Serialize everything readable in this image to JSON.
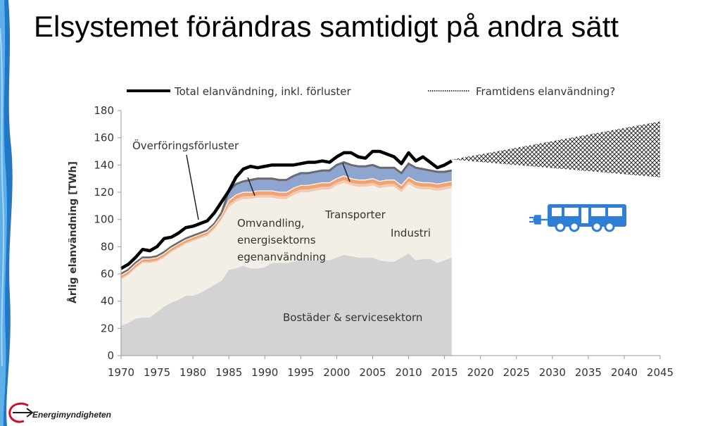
{
  "slide": {
    "title": "Elsystemet förändras samtidigt på andra sätt",
    "logo_text": "Energimyndigheten"
  },
  "chart_data": {
    "type": "area",
    "ylabel": "Årlig elanvändning [TWh]",
    "xlabel": "",
    "ylim": [
      0,
      180
    ],
    "xlim": [
      1970,
      2045
    ],
    "y_ticks": [
      0,
      20,
      40,
      60,
      80,
      100,
      120,
      140,
      160,
      180
    ],
    "x_ticks": [
      1970,
      1975,
      1980,
      1985,
      1990,
      1995,
      2000,
      2005,
      2010,
      2015,
      2020,
      2025,
      2030,
      2035,
      2040,
      2045
    ],
    "grid": false,
    "legend": {
      "placement": "top",
      "entries": [
        {
          "name": "Total elanvändning, inkl. förluster",
          "style": "line",
          "color": "#000000"
        },
        {
          "name": "Framtidens elanvändning?",
          "style": "dotted",
          "color": "#555555"
        }
      ]
    },
    "annotations": [
      {
        "text": "Överföringsförluster"
      },
      {
        "text": "Omvandling,"
      },
      {
        "text": "energisektorns"
      },
      {
        "text": "egenanvändning"
      },
      {
        "text": "Transporter"
      },
      {
        "text": "Industri"
      },
      {
        "text": "Bostäder & servicesektorn"
      }
    ],
    "x": [
      1970,
      1971,
      1972,
      1973,
      1974,
      1975,
      1976,
      1977,
      1978,
      1979,
      1980,
      1981,
      1982,
      1983,
      1984,
      1985,
      1986,
      1987,
      1988,
      1989,
      1990,
      1991,
      1992,
      1993,
      1994,
      1995,
      1996,
      1997,
      1998,
      1999,
      2000,
      2001,
      2002,
      2003,
      2004,
      2005,
      2006,
      2007,
      2008,
      2009,
      2010,
      2011,
      2012,
      2013,
      2014,
      2015,
      2016
    ],
    "series": [
      {
        "name": "Bostäder & servicesektorn",
        "color": "#d3d3d3",
        "values": [
          22,
          24,
          27,
          28,
          28,
          32,
          36,
          39,
          41,
          44,
          44,
          46,
          49,
          52,
          55,
          63,
          64,
          66,
          64,
          64,
          65,
          68,
          68,
          68,
          69,
          70,
          70,
          70,
          70,
          70,
          72,
          74,
          73,
          72,
          72,
          72,
          70,
          69,
          69,
          72,
          75,
          70,
          71,
          71,
          68,
          70,
          72
        ]
      },
      {
        "name": "Industri",
        "color": "#f3efe6",
        "values": [
          34,
          35,
          37,
          40,
          40,
          37,
          36,
          37,
          38,
          38,
          40,
          40,
          39,
          41,
          45,
          46,
          49,
          49,
          51,
          52,
          51,
          48,
          47,
          47,
          49,
          50,
          50,
          51,
          52,
          52,
          53,
          53,
          52,
          52,
          52,
          53,
          53,
          55,
          55,
          48,
          51,
          53,
          51,
          51,
          53,
          52,
          51
        ]
      },
      {
        "name": "Transporter",
        "color": "#f4c9b0",
        "values": [
          1,
          1,
          1,
          1,
          1,
          1,
          1,
          1,
          1,
          1,
          1,
          1,
          1,
          1,
          1,
          2,
          2,
          2,
          2,
          2,
          2,
          2,
          2,
          2,
          2,
          2,
          2,
          2,
          2,
          2,
          2,
          2,
          2,
          2,
          2,
          2,
          2,
          2,
          2,
          2,
          2,
          2,
          2,
          2,
          2,
          2,
          2
        ]
      },
      {
        "name": "Omvandling, energisektorns egenanvändning",
        "color": "#f0a272",
        "values": [
          2,
          2,
          2,
          2,
          2,
          2,
          2,
          2,
          2,
          2,
          2,
          2,
          2,
          2,
          2,
          3,
          3,
          3,
          3,
          3,
          3,
          3,
          3,
          3,
          3,
          3,
          3,
          3,
          3,
          3,
          3,
          3,
          3,
          3,
          3,
          3,
          3,
          3,
          3,
          3,
          3,
          3,
          3,
          3,
          3,
          3,
          3
        ]
      },
      {
        "name": "Överföringsförluster",
        "color": "#8ea6cf",
        "values": [
          1,
          1,
          1,
          1,
          1,
          1,
          1,
          1,
          1,
          1,
          1,
          1,
          1,
          1,
          2,
          7,
          8,
          8,
          9,
          9,
          9,
          9,
          9,
          9,
          9,
          9,
          9,
          9,
          9,
          9,
          10,
          10,
          10,
          10,
          10,
          10,
          10,
          9,
          9,
          9,
          10,
          10,
          10,
          9,
          9,
          8,
          8
        ]
      },
      {
        "name": "Total elanvändning, inkl. förluster",
        "color": "#000000",
        "values": [
          64,
          67,
          72,
          78,
          77,
          80,
          86,
          87,
          90,
          94,
          95,
          97,
          99,
          105,
          113,
          121,
          131,
          137,
          139,
          138,
          139,
          140,
          140,
          140,
          140,
          141,
          142,
          142,
          143,
          142,
          146,
          149,
          149,
          146,
          145,
          150,
          150,
          148,
          146,
          141,
          149,
          143,
          146,
          142,
          138,
          140,
          143
        ]
      }
    ],
    "future": {
      "name": "Framtidens elanvändning?",
      "x": [
        2016,
        2045
      ],
      "upper": [
        144,
        172
      ],
      "lower": [
        144,
        131
      ]
    }
  }
}
